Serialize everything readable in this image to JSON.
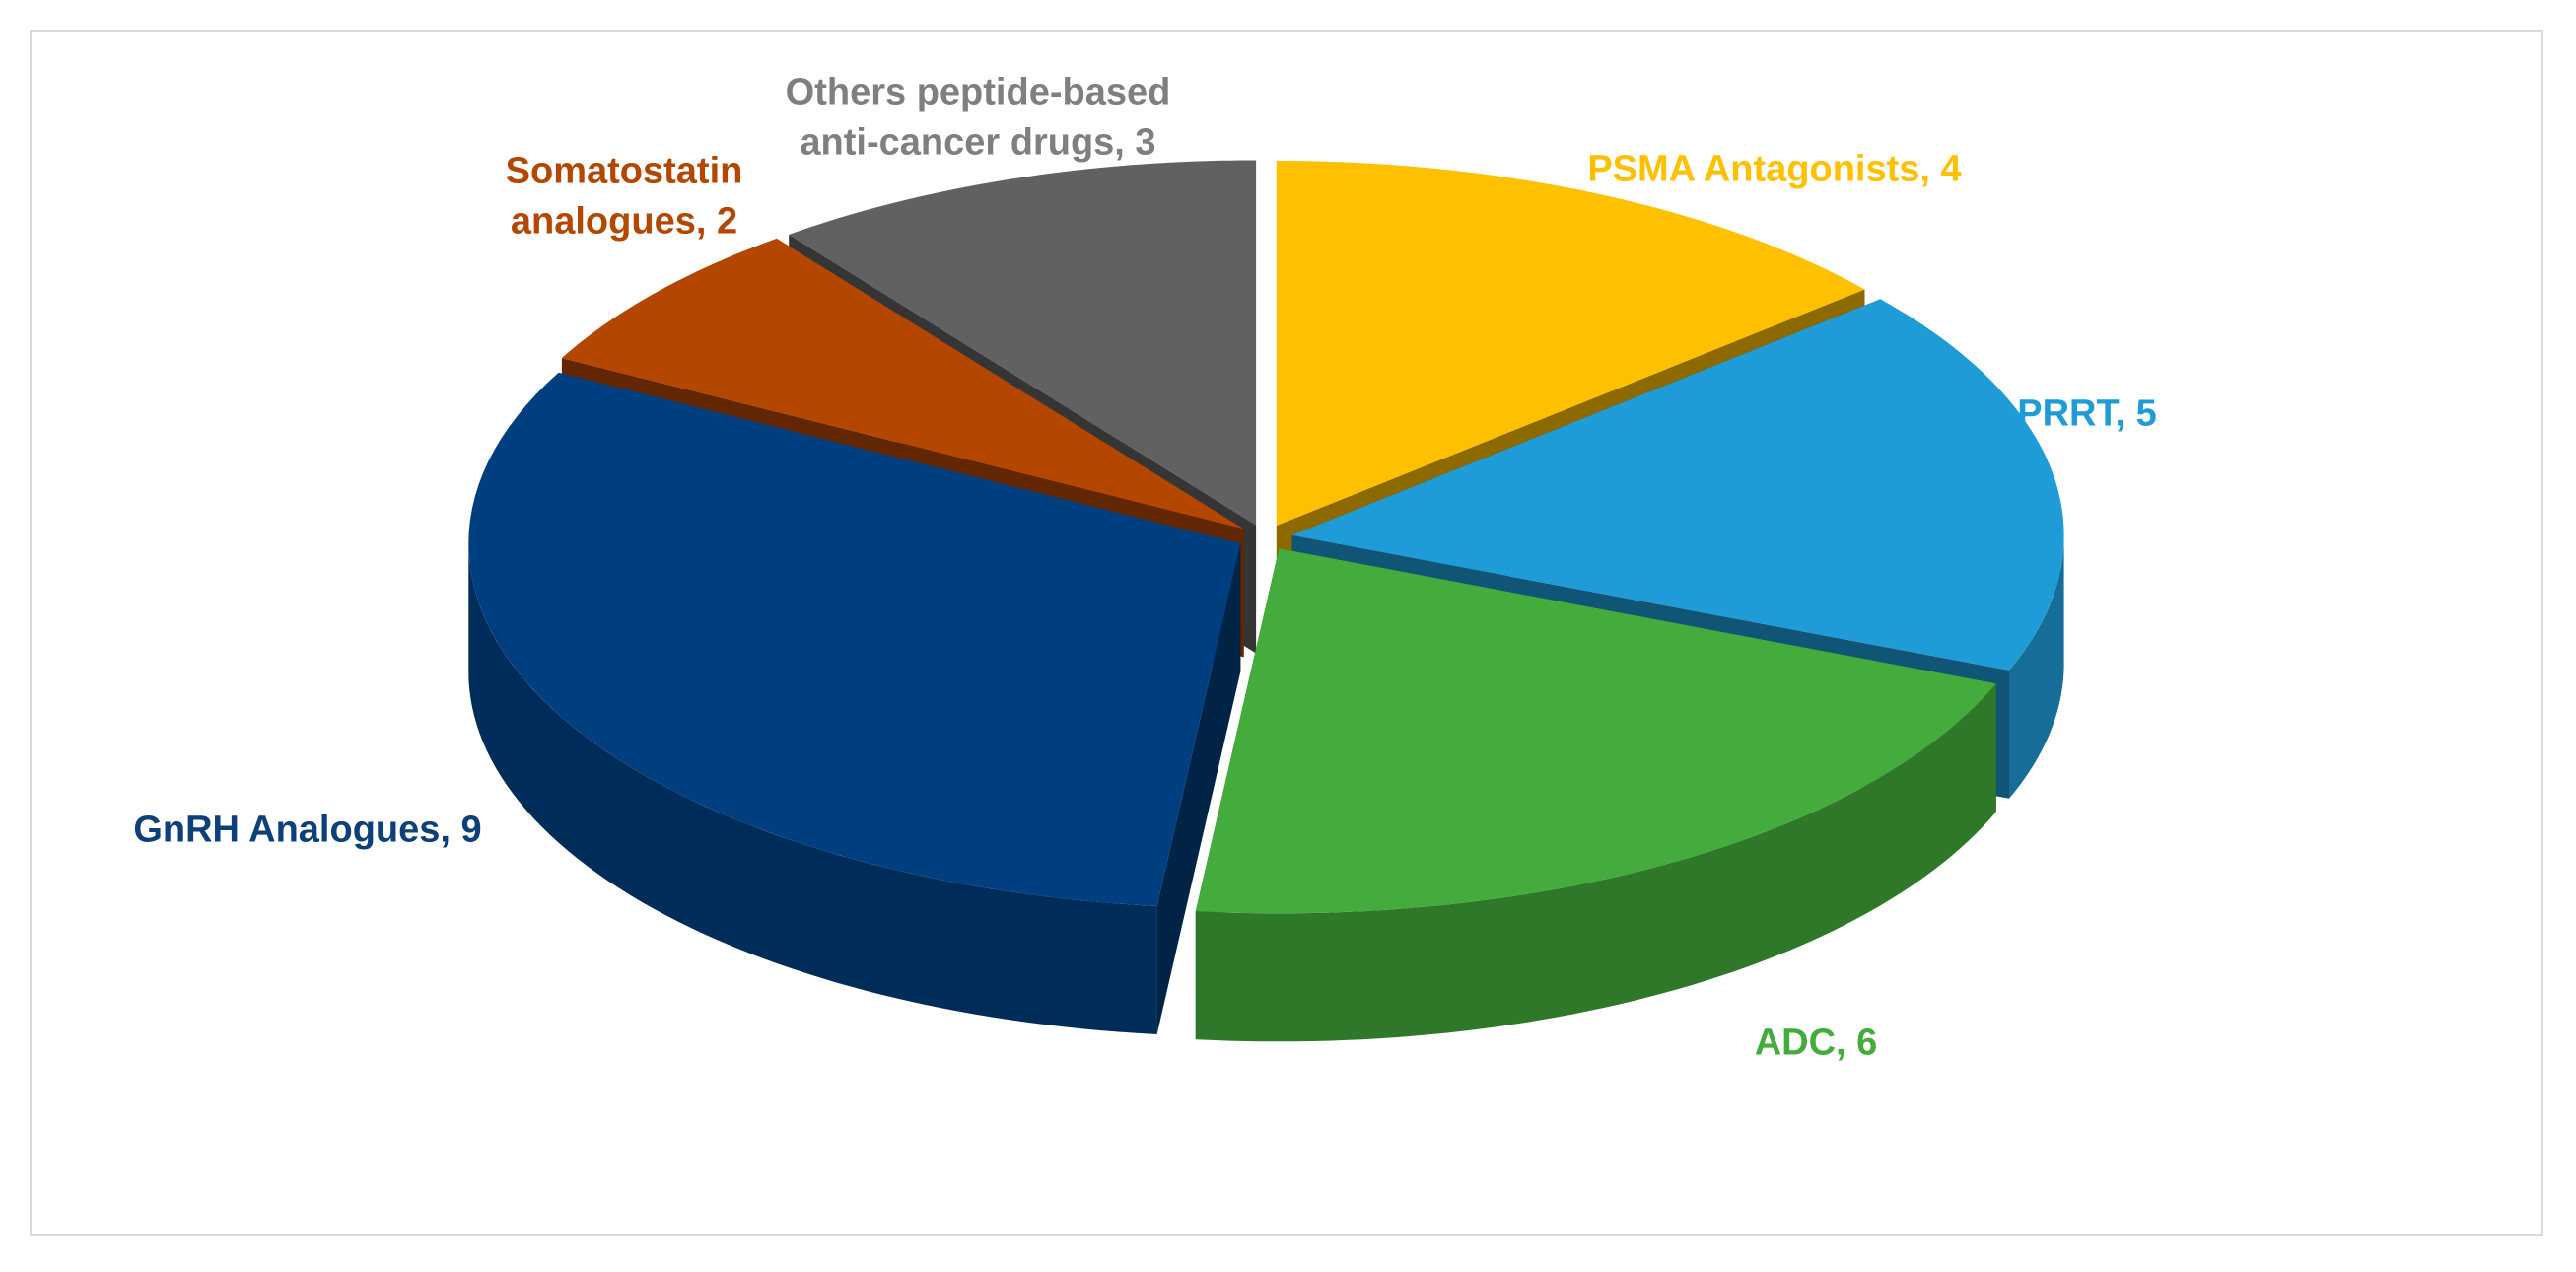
{
  "chart_data": {
    "type": "pie3d",
    "categories": [
      "PSMA Antagonists",
      "PRRT",
      "ADC",
      "GnRH Analogues",
      "Somatostatin analogues",
      "Others peptide-based anti-cancer drugs"
    ],
    "values": [
      4,
      5,
      6,
      9,
      2,
      3
    ],
    "colors": [
      "#ffc000",
      "#1f9bd7",
      "#43ac3c",
      "#003f7f",
      "#b34700",
      "#616161"
    ],
    "label_colors": [
      "#ffc000",
      "#1f9bd7",
      "#43ac3c",
      "#0d3f7a",
      "#b34700",
      "#7f7f7f"
    ],
    "label_separator": ", "
  }
}
